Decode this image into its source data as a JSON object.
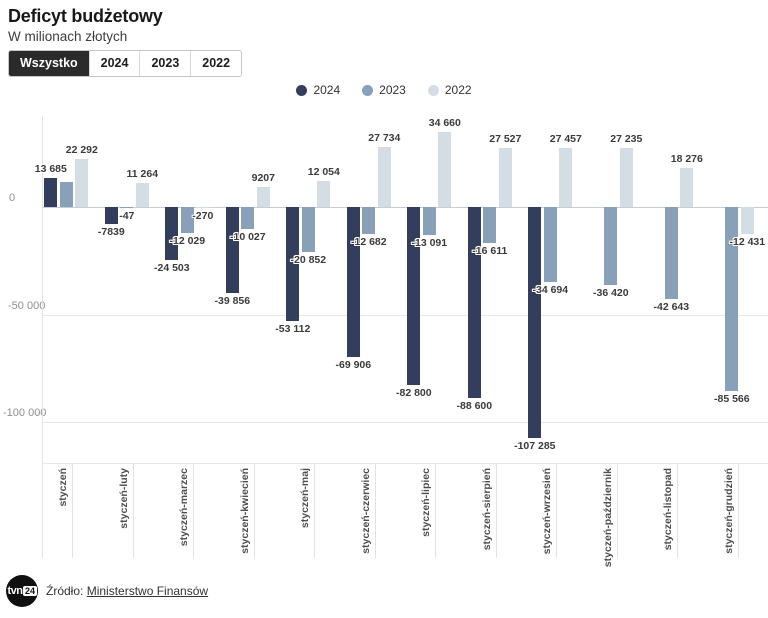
{
  "header": {
    "title": "Deficyt budżetowy",
    "subtitle": "W milionach złotych"
  },
  "tabs": [
    {
      "label": "Wszystko",
      "selected": true
    },
    {
      "label": "2024",
      "selected": false
    },
    {
      "label": "2023",
      "selected": false
    },
    {
      "label": "2022",
      "selected": false
    }
  ],
  "legend": [
    {
      "label": "2024",
      "color": "#333e5c"
    },
    {
      "label": "2023",
      "color": "#88a0b8"
    },
    {
      "label": "2022",
      "color": "#d2dee3"
    }
  ],
  "footer": {
    "source_prefix": "Źródło:",
    "source_link": "Ministerstwo Finansów"
  },
  "logo": {
    "main": "tvn",
    "badge": "24"
  },
  "chart_data": {
    "type": "bar",
    "title": "Deficyt budżetowy",
    "subtitle": "W milionach złotych",
    "legend_position": "top-center",
    "grid": "horizontal",
    "ylim": [
      -120000,
      40000
    ],
    "yticks": [
      0,
      -50000,
      -100000
    ],
    "ytick_labels": [
      "0",
      "-50 000",
      "-100 000"
    ],
    "categories": [
      "styczeń",
      "styczeń-luty",
      "styczeń-marzec",
      "styczeń-kwiecień",
      "styczeń-maj",
      "styczeń-czerwiec",
      "styczeń-lipiec",
      "styczeń-sierpień",
      "styczeń-wrzesień",
      "styczeń-październik",
      "styczeń-listopad",
      "styczeń-grudzień"
    ],
    "series": [
      {
        "name": "2024",
        "color": "#333e5c",
        "values": [
          13685,
          -7839,
          -24503,
          -39856,
          -53112,
          -69906,
          -82800,
          -88600,
          -107285,
          null,
          null,
          null
        ]
      },
      {
        "name": "2023",
        "color": "#88a0b8",
        "values": [
          11500,
          -47,
          -12029,
          -10027,
          -20852,
          -12682,
          -13091,
          -16611,
          -34694,
          -36420,
          -42643,
          -85566
        ],
        "hidden_labels": [
          0
        ]
      },
      {
        "name": "2022",
        "color": "#d2dee3",
        "values": [
          22292,
          11264,
          -270,
          9207,
          12054,
          27734,
          34660,
          27527,
          27457,
          27235,
          18276,
          -12431
        ]
      }
    ]
  }
}
